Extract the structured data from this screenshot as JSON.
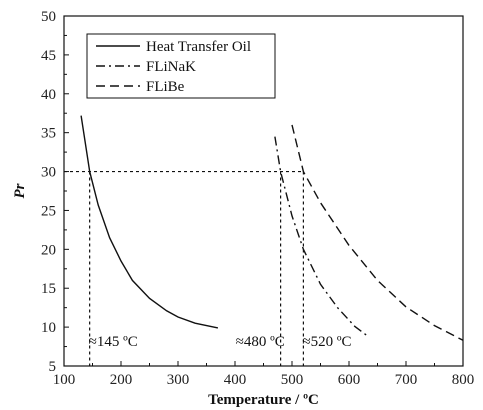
{
  "chart_data": {
    "type": "line",
    "xlabel": "Temperature / ºC",
    "ylabel": "Pr",
    "xlim": [
      100,
      800
    ],
    "ylim": [
      5,
      50
    ],
    "x_ticks": [
      100,
      200,
      300,
      400,
      500,
      600,
      700,
      800
    ],
    "y_ticks": [
      5,
      10,
      15,
      20,
      25,
      30,
      35,
      40,
      45,
      50
    ],
    "grid": false,
    "legend_position": "top-left",
    "series": [
      {
        "name": "Heat Transfer Oil",
        "style": "solid",
        "x": [
          130,
          145,
          160,
          180,
          200,
          220,
          250,
          280,
          300,
          330,
          370
        ],
        "y": [
          37.2,
          30.0,
          25.7,
          21.5,
          18.5,
          16.0,
          13.7,
          12.1,
          11.3,
          10.5,
          9.9
        ]
      },
      {
        "name": "FLiNaK",
        "style": "dash-dot",
        "x": [
          470,
          480,
          500,
          520,
          550,
          580,
          610,
          630
        ],
        "y": [
          34.5,
          30.0,
          24.3,
          20.0,
          15.5,
          12.5,
          10.1,
          9.0
        ]
      },
      {
        "name": "FLiBe",
        "style": "dashed",
        "x": [
          500,
          520,
          550,
          600,
          650,
          700,
          750,
          800
        ],
        "y": [
          36.0,
          30.0,
          26.0,
          20.5,
          16.0,
          12.6,
          10.2,
          8.3
        ]
      }
    ],
    "reference_lines": {
      "horizontal_y": 30,
      "vertical_x": [
        145,
        480,
        520
      ]
    },
    "annotations": [
      {
        "text": "≈145 ºC",
        "x": 145
      },
      {
        "text": "≈480 ºC",
        "x": 480
      },
      {
        "text": "≈520 ºC",
        "x": 520
      }
    ]
  }
}
